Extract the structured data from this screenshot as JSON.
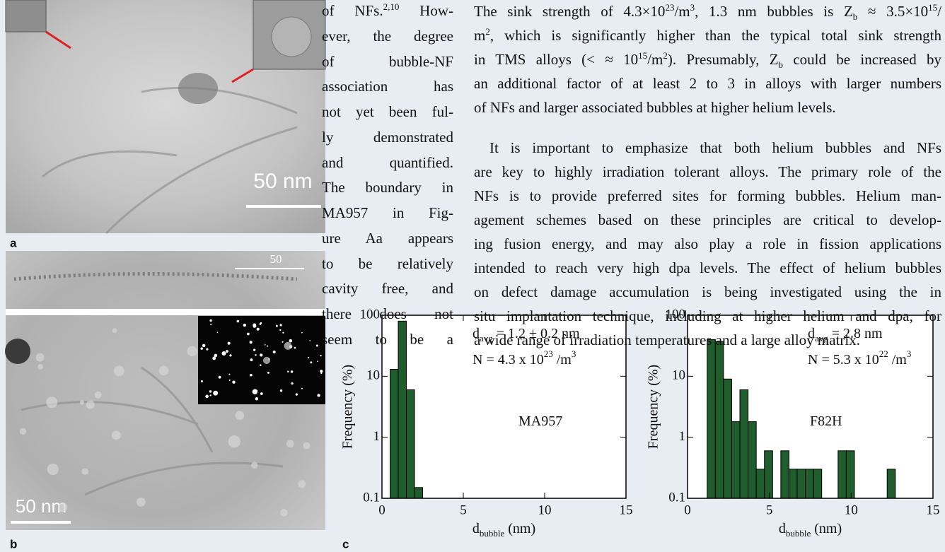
{
  "figure": {
    "panel_labels": [
      "a",
      "b",
      "c"
    ],
    "scale_a": "50 nm",
    "scale_b_top": "50",
    "scale_b": "50 nm"
  },
  "text_left": [
    [
      "of NFs.",
      {
        "sup": "2,10"
      },
      " How-"
    ],
    [
      "ever, the degree"
    ],
    [
      "of bubble-NF"
    ],
    [
      "association has"
    ],
    [
      "not yet been ful-"
    ],
    [
      "ly demonstrated"
    ],
    [
      "and quantified."
    ],
    [
      "The boundary in"
    ],
    [
      "MA957 in Fig-"
    ],
    [
      "ure Aa appears"
    ],
    [
      "to be relatively"
    ],
    [
      "cavity free, and"
    ],
    [
      "there does not"
    ],
    [
      "seem to be a"
    ]
  ],
  "text_right": [
    [
      [
        "The sink strength of 4.3×10",
        {
          "sup": "23"
        },
        "/m",
        {
          "sup": "3"
        },
        ", 1.3 nm bubbles is Z",
        {
          "sub": "b"
        },
        " ≈ 3.5×10",
        {
          "sup": "15"
        },
        "/"
      ],
      [
        "m",
        {
          "sup": "2"
        },
        ", which is significantly higher than the typical total sink strength"
      ],
      [
        "in TMS alloys (< ≈ 10",
        {
          "sup": "15"
        },
        "/m",
        {
          "sup": "2"
        },
        "). Presumably, Z",
        {
          "sub": "b"
        },
        " could be increased by"
      ],
      [
        "an additional factor of at least 2 to 3 in alloys with larger numbers"
      ],
      [
        "of NFs and larger associated bubbles at higher helium levels."
      ]
    ],
    [
      [
        "It is important to emphasize that both helium bubbles and NFs"
      ],
      [
        "are key to highly irradiation tolerant alloys. The primary role of the"
      ],
      [
        "NFs is to provide preferred sites for forming bubbles. Helium man-"
      ],
      [
        "agement schemes based on these principles are critical to develop-"
      ],
      [
        "ing fusion energy, and may also play a role in fission applications"
      ],
      [
        "intended to reach very high dpa levels. The effect of helium bubbles"
      ],
      [
        "on defect damage accumulation is being investigated using the in"
      ],
      [
        "situ implantation technique, including at higher helium and dpa, for"
      ],
      [
        "a wide range of irradiation temperatures and a large alloy matrix."
      ]
    ]
  ],
  "chart_data": [
    {
      "type": "histogram",
      "bins": [
        0.5,
        1.0,
        1.5,
        2.0,
        2.5
      ],
      "values": [
        13,
        80,
        6,
        0.15
      ],
      "color": "#1f5e2c",
      "xlim": [
        0,
        15
      ],
      "xticks": [
        0,
        5,
        10,
        15
      ],
      "ylim": [
        0.1,
        100
      ],
      "yticks": [
        0.1,
        1,
        10,
        100
      ],
      "log_y": true,
      "ylabel": "Frequency (%)",
      "xlabel": [
        "d",
        {
          "sub": "bubble"
        },
        " (nm)"
      ],
      "annotations": [
        [
          "d",
          {
            "sub": "avg"
          },
          " = 1.2 ± 0.2 nm"
        ],
        [
          "N = 4.3 x 10",
          {
            "sup": "23"
          },
          " /m",
          {
            "sup": "3"
          }
        ],
        [
          "MA957"
        ]
      ]
    },
    {
      "type": "histogram",
      "bins": [
        1.2,
        1.7,
        2.2,
        2.7,
        3.2,
        3.7,
        4.2,
        4.7,
        5.2,
        5.7,
        6.2,
        6.7,
        7.2,
        7.7,
        8.2,
        8.7,
        9.2,
        9.7,
        10.2,
        10.7,
        11.2,
        11.7,
        12.2,
        12.7
      ],
      "values": [
        40,
        37,
        9,
        1.8,
        6,
        1.8,
        0.3,
        0.6,
        null,
        0.6,
        0.3,
        0.3,
        0.3,
        0.3,
        null,
        null,
        0.6,
        0.6,
        null,
        null,
        null,
        null,
        0.3
      ],
      "color": "#1f5e2c",
      "xlim": [
        0,
        15
      ],
      "xticks": [
        0,
        5,
        10,
        15
      ],
      "ylim": [
        0.1,
        100
      ],
      "yticks": [
        0.1,
        1,
        10,
        100
      ],
      "log_y": true,
      "ylabel": "Frequency (%)",
      "xlabel": [
        "d",
        {
          "sub": "bubble"
        },
        " (nm)"
      ],
      "annotations": [
        [
          "d",
          {
            "sub": "avg"
          },
          " = 2.8 nm"
        ],
        [
          "N = 5.3 x 10",
          {
            "sup": "22"
          },
          " /m",
          {
            "sup": "3"
          }
        ],
        [
          "F82H"
        ]
      ]
    }
  ]
}
